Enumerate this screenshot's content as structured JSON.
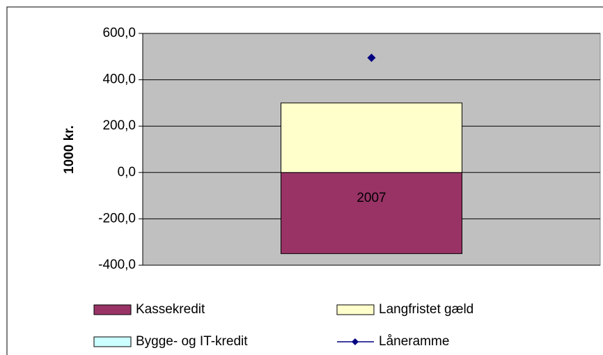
{
  "chart_data": {
    "type": "bar",
    "stacked": true,
    "categories": [
      "2007"
    ],
    "y_label": "1000 kr.",
    "ylim": [
      -400,
      600
    ],
    "yticks": [
      {
        "value": -400,
        "label": "-400,0"
      },
      {
        "value": -200,
        "label": "-200,0"
      },
      {
        "value": 0,
        "label": "0,0"
      },
      {
        "value": 200,
        "label": "200,0"
      },
      {
        "value": 400,
        "label": "400,0"
      },
      {
        "value": 600,
        "label": "600,0"
      }
    ],
    "grid": true,
    "series": [
      {
        "name": "Kassekredit",
        "color": "#993366",
        "values": [
          -350
        ]
      },
      {
        "name": "Langfristet gæld",
        "color": "#ffffcc",
        "values": [
          300
        ]
      },
      {
        "name": "Bygge- og IT-kredit",
        "color": "#ccffff",
        "values": [
          0
        ]
      },
      {
        "name": "Låneramme",
        "color": "#000080",
        "type": "line",
        "values": [
          495
        ]
      }
    ],
    "legend": "bottom"
  }
}
